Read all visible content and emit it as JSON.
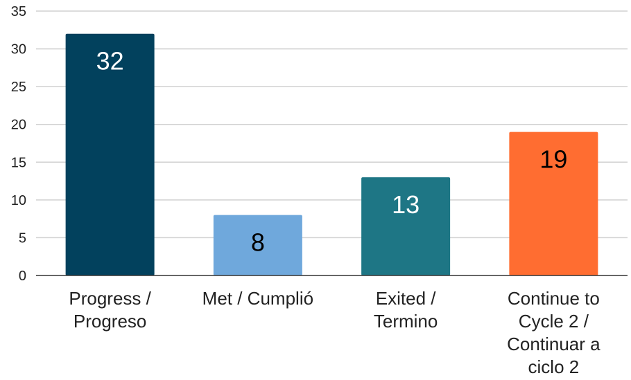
{
  "chart_data": {
    "type": "bar",
    "title": "",
    "xlabel": "",
    "ylabel": "",
    "categories": [
      [
        "Progress /",
        "Progreso"
      ],
      [
        "Met / Cumplió"
      ],
      [
        "Exited /",
        "Termino"
      ],
      [
        "Continue to",
        "Cycle 2 /",
        "Continuar a",
        "ciclo 2"
      ]
    ],
    "values": [
      32,
      8,
      13,
      19
    ],
    "data_labels": [
      "32",
      "8",
      "13",
      "19"
    ],
    "colors": [
      "#02415d",
      "#6fa8dc",
      "#1e7685",
      "#ff6d31"
    ],
    "label_colors": [
      "#ffffff",
      "#000000",
      "#ffffff",
      "#000000"
    ],
    "ylim": [
      0,
      35
    ],
    "yticks": [
      0,
      5,
      10,
      15,
      20,
      25,
      30,
      35
    ],
    "grid": true,
    "legend": "none"
  }
}
